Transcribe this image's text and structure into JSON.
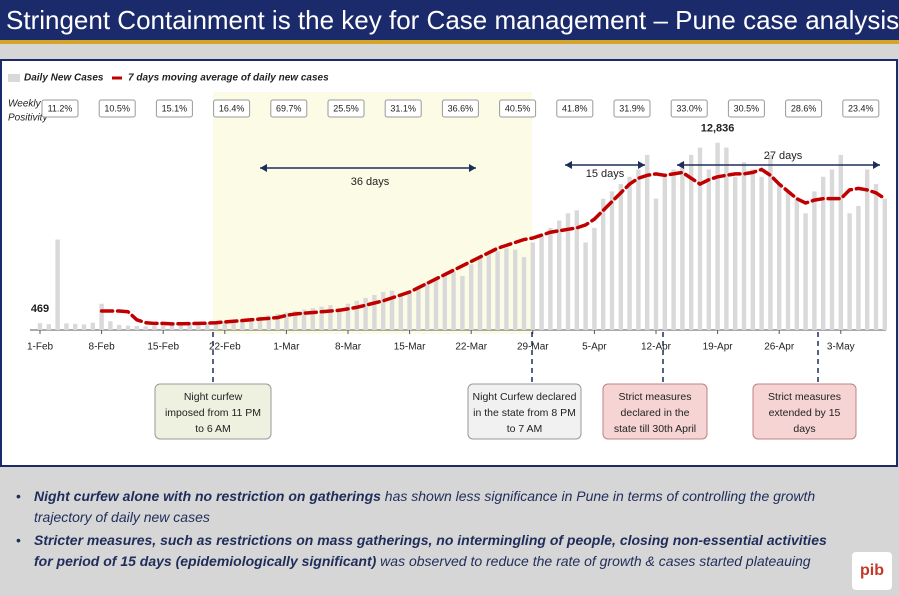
{
  "chart_data": {
    "type": "bar",
    "title": "Stringent Containment is the key for Case management – Pune case analysis",
    "categories": [
      "1-Feb",
      null,
      null,
      null,
      null,
      null,
      null,
      "8-Feb",
      null,
      null,
      null,
      null,
      null,
      null,
      "15-Feb",
      null,
      null,
      null,
      null,
      null,
      null,
      "22-Feb",
      null,
      null,
      null,
      null,
      null,
      null,
      "1-Mar",
      null,
      null,
      null,
      null,
      null,
      null,
      "8-Mar",
      null,
      null,
      null,
      null,
      null,
      null,
      "15-Mar",
      null,
      null,
      null,
      null,
      null,
      null,
      "22-Mar",
      null,
      null,
      null,
      null,
      null,
      null,
      "29-Mar",
      null,
      null,
      null,
      null,
      null,
      null,
      "5-Apr",
      null,
      null,
      null,
      null,
      null,
      null,
      "12-Apr",
      null,
      null,
      null,
      null,
      null,
      null,
      "19-Apr",
      null,
      null,
      null,
      null,
      null,
      null,
      "26-Apr",
      null,
      null,
      null,
      null,
      null,
      null,
      "3-May",
      null,
      null,
      null,
      null,
      null
    ],
    "series": [
      {
        "name": "Daily New Cases",
        "type": "bar",
        "color": "#d9d9d9",
        "values": [
          469,
          400,
          6200,
          450,
          420,
          380,
          500,
          1800,
          600,
          350,
          300,
          280,
          250,
          300,
          350,
          400,
          450,
          500,
          420,
          480,
          550,
          600,
          650,
          700,
          800,
          900,
          1000,
          1100,
          1200,
          1300,
          1400,
          1500,
          1600,
          1700,
          1500,
          1800,
          2000,
          2200,
          2400,
          2600,
          2700,
          2500,
          2700,
          3000,
          3300,
          3600,
          3800,
          4000,
          3700,
          4500,
          5000,
          5200,
          5400,
          5600,
          5500,
          5000,
          6000,
          6500,
          7000,
          7500,
          8000,
          8200,
          6000,
          7000,
          9000,
          9500,
          10000,
          10500,
          11000,
          12000,
          9000,
          10500,
          11000,
          11500,
          12000,
          12500,
          11000,
          12836,
          12500,
          10500,
          11500,
          11000,
          10500,
          12000,
          10000,
          9500,
          9000,
          8000,
          9500,
          10500,
          11000,
          12000,
          8000,
          8500,
          11000,
          10000,
          9000
        ],
        "value_labels": [
          "469",
          null,
          null,
          null,
          null,
          null,
          null,
          null,
          null,
          null,
          null,
          null,
          null,
          null,
          null,
          null,
          null,
          null,
          null,
          null,
          null,
          null,
          null,
          null,
          null,
          null,
          null,
          null,
          null,
          null,
          null,
          null,
          null,
          null,
          null,
          null,
          null,
          null,
          null,
          null,
          null,
          null,
          null,
          null,
          null,
          null,
          null,
          null,
          null,
          null,
          null,
          null,
          null,
          null,
          null,
          null,
          null,
          null,
          null,
          null,
          null,
          null,
          null,
          null,
          null,
          null,
          null,
          null,
          null,
          null,
          null,
          null,
          null,
          null,
          null,
          null,
          null,
          "12,836",
          null,
          null,
          null,
          null,
          null,
          null,
          null,
          null,
          null,
          null,
          null,
          null,
          null,
          null,
          null,
          null,
          null,
          null,
          null
        ]
      },
      {
        "name": "7 days moving average of daily new cases",
        "type": "line",
        "color": "#c00000",
        "values": [
          null,
          null,
          null,
          null,
          null,
          null,
          null,
          1300,
          1300,
          1300,
          1250,
          700,
          500,
          450,
          450,
          420,
          430,
          440,
          450,
          470,
          500,
          550,
          600,
          650,
          700,
          750,
          800,
          850,
          1000,
          1100,
          1150,
          1200,
          1250,
          1300,
          1350,
          1450,
          1550,
          1700,
          1850,
          2000,
          2200,
          2400,
          2600,
          2900,
          3200,
          3500,
          3800,
          4100,
          4400,
          4700,
          5000,
          5300,
          5600,
          5800,
          6000,
          6200,
          6300,
          6500,
          6700,
          6800,
          6900,
          7000,
          7200,
          7600,
          8200,
          8800,
          9400,
          10000,
          10400,
          10600,
          10700,
          10600,
          10700,
          10800,
          10400,
          10000,
          10300,
          10500,
          10600,
          10700,
          10700,
          10800,
          11000,
          10600,
          10000,
          9500,
          9000,
          8700,
          8900,
          9000,
          9000,
          9000,
          9600,
          9700,
          9600,
          9400,
          9000
        ]
      }
    ],
    "ylim": [
      0,
      13500
    ],
    "positivity": {
      "label": [
        "Weekly",
        "Positivity"
      ],
      "values": [
        11.2,
        10.5,
        15.1,
        16.4,
        69.7,
        25.5,
        31.1,
        36.6,
        40.5,
        41.8,
        31.9,
        33.0,
        30.5,
        28.6,
        23.4
      ],
      "value_labels": [
        "11.2%",
        "10.5%",
        "15.1%",
        "16.4%",
        "69.7%",
        "25.5%",
        "31.1%",
        "36.6%",
        "40.5%",
        "41.8%",
        "31.9%",
        "33.0%",
        "30.5%",
        "28.6%",
        "23.4%"
      ]
    },
    "spans": [
      "36 days",
      "15 days",
      "27 days"
    ],
    "callouts": [
      [
        "Night curfew",
        "imposed from 11 PM",
        "to 6 AM"
      ],
      [
        "Night Curfew declared",
        "in the state from 8 PM",
        "to 7 AM"
      ],
      [
        "Strict measures",
        "declared in the",
        "state till 30th April"
      ],
      [
        "Strict measures",
        "extended by 15",
        "days"
      ]
    ]
  },
  "bullets": [
    [
      {
        "text": "Night curfew alone with no restriction on gatherings",
        "bold": true
      },
      {
        "text": " has shown less significance in Pune in terms of controlling the growth trajectory of daily new cases",
        "bold": false
      }
    ],
    [
      {
        "text": "Stricter measures, such as restrictions on mass gatherings, no intermingling of people, closing non-essential activities for period of 15 days (epidemiologically significant)",
        "bold": true
      },
      {
        "text": " was observed to reduce the rate of growth & cases started plateauing",
        "bold": false
      }
    ]
  ],
  "logo": "pib"
}
